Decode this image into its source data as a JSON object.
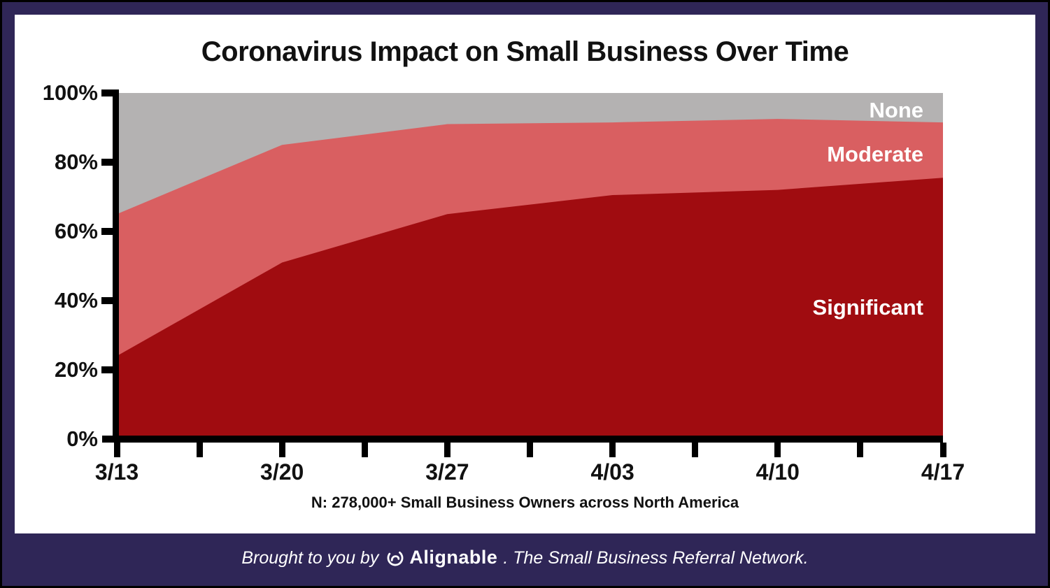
{
  "title": "Coronavirus Impact on Small Business Over Time",
  "chart_data": {
    "type": "area",
    "stacked": true,
    "title": "Coronavirus Impact on Small Business Over Time",
    "subtitle": "N: 278,000+ Small Business Owners across North America",
    "categories": [
      "3/13",
      "3/20",
      "3/27",
      "4/03",
      "4/10",
      "4/17"
    ],
    "series": [
      {
        "name": "Significant",
        "color": "#A00C10",
        "values": [
          24,
          51,
          65,
          70.5,
          72,
          75.5
        ]
      },
      {
        "name": "Moderate",
        "color": "#D95F61",
        "values": [
          41,
          34,
          26,
          21,
          20.5,
          16
        ]
      },
      {
        "name": "None",
        "color": "#B4B2B2",
        "values": [
          35,
          15,
          9,
          8.5,
          7.5,
          8.5
        ]
      }
    ],
    "cumulative_boundaries": {
      "significant": [
        24,
        51,
        65,
        70.5,
        72,
        75.5
      ],
      "significant_plus_moderate": [
        65,
        85,
        91,
        91.5,
        92.5,
        91.5
      ],
      "total": [
        100,
        100,
        100,
        100,
        100,
        100
      ]
    },
    "ylim": [
      0,
      100
    ],
    "y_ticks": [
      "0%",
      "20%",
      "40%",
      "60%",
      "80%",
      "100%"
    ],
    "grid": false,
    "legend_position": "labels-inside-areas-right"
  },
  "colors": {
    "significant": "#A00C10",
    "moderate": "#D95F61",
    "none": "#B4B2B2",
    "card_background": "#FFFFFF",
    "border_navy": "#2F2657",
    "outer_border_black": "#000000",
    "axis_text": "#111111",
    "footer_text": "#FFFFFF"
  },
  "footer": {
    "prefix": "Brought to you by",
    "brand": "Alignable",
    "suffix": ". The Small Business Referral Network."
  }
}
